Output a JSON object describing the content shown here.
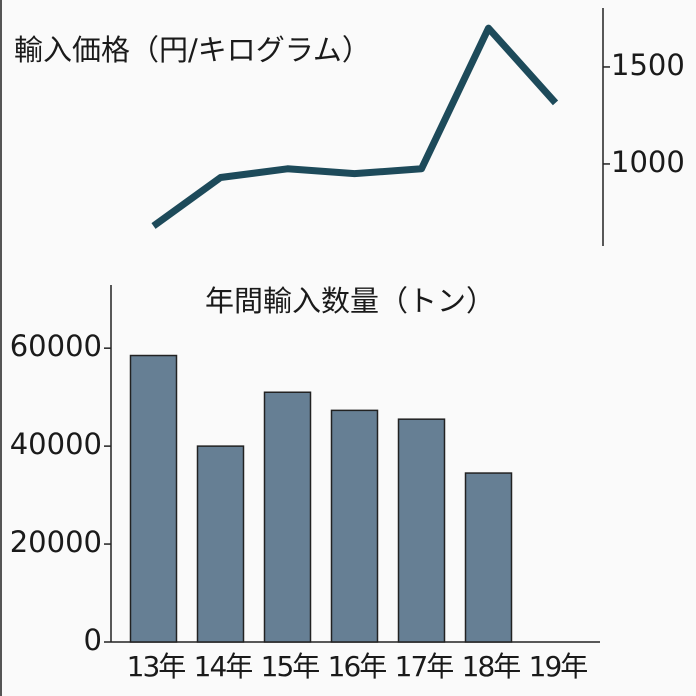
{
  "chart_data": [
    {
      "type": "line",
      "title": "輸入価格（円/キログラム）",
      "axis_side": "right",
      "values": [
        680,
        930,
        975,
        950,
        975,
        1700,
        1315
      ],
      "color": "#1d4a5a",
      "ylim": [
        577,
        1804
      ],
      "yticks": [
        1000,
        1500
      ]
    },
    {
      "type": "bar",
      "title": "年間輸入数量（トン）",
      "categories": [
        "13年",
        "14年",
        "15年",
        "16年",
        "17年",
        "18年",
        "19年"
      ],
      "values": [
        58500,
        40000,
        51000,
        47300,
        45500,
        34500,
        null
      ],
      "color": "#667f94",
      "ylim": [
        0,
        72900
      ],
      "yticks": [
        0,
        20000,
        40000,
        60000
      ]
    }
  ]
}
